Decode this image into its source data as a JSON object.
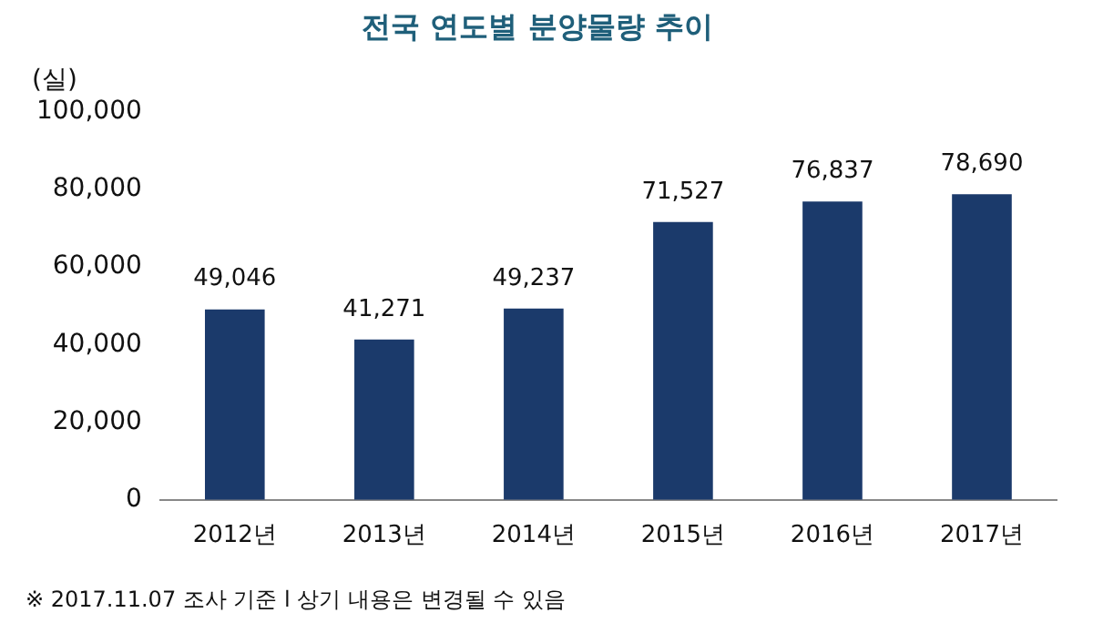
{
  "chart_data": {
    "type": "bar",
    "title": "전국 연도별 분양물량 추이",
    "ylabel": "(실)",
    "categories": [
      "2012년",
      "2013년",
      "2014년",
      "2015년",
      "2016년",
      "2017년"
    ],
    "values": [
      49046,
      41271,
      49237,
      71527,
      76837,
      78690
    ],
    "color": "#1b3a6b",
    "value_labels": [
      "49,046",
      "41,271",
      "49,237",
      "71,527",
      "76,837",
      "78,690"
    ],
    "ylim": [
      0,
      100000
    ],
    "yticks": [
      0,
      {
        "value": 20000,
        "label": "20,000"
      },
      {
        "value": 40000,
        "label": "40,000"
      },
      {
        "value": 60000,
        "label": "60,000"
      },
      {
        "value": 80000,
        "label": "80,000"
      },
      {
        "value": 100000,
        "label": "100,000"
      }
    ],
    "grid": false,
    "legend": false,
    "annotations": [
      "※ 2017.11.07 조사 기준 l 상기 내용은 변경될 수 있음"
    ]
  }
}
